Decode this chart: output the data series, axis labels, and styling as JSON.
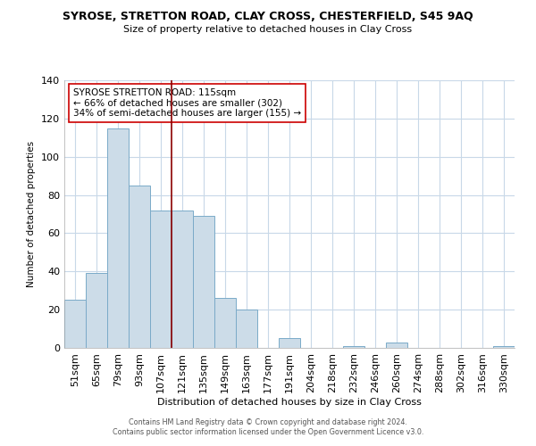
{
  "title": "SYROSE, STRETTON ROAD, CLAY CROSS, CHESTERFIELD, S45 9AQ",
  "subtitle": "Size of property relative to detached houses in Clay Cross",
  "xlabel": "Distribution of detached houses by size in Clay Cross",
  "ylabel": "Number of detached properties",
  "bar_labels": [
    "51sqm",
    "65sqm",
    "79sqm",
    "93sqm",
    "107sqm",
    "121sqm",
    "135sqm",
    "149sqm",
    "163sqm",
    "177sqm",
    "191sqm",
    "204sqm",
    "218sqm",
    "232sqm",
    "246sqm",
    "260sqm",
    "274sqm",
    "288sqm",
    "302sqm",
    "316sqm",
    "330sqm"
  ],
  "bar_values": [
    25,
    39,
    115,
    85,
    72,
    72,
    69,
    26,
    20,
    0,
    5,
    0,
    0,
    1,
    0,
    3,
    0,
    0,
    0,
    0,
    1
  ],
  "bar_color": "#ccdce8",
  "bar_edgecolor": "#7aaac8",
  "vline_x": 4.5,
  "vline_color": "#8b0000",
  "ylim": [
    0,
    140
  ],
  "annotation_text": "SYROSE STRETTON ROAD: 115sqm\n← 66% of detached houses are smaller (302)\n34% of semi-detached houses are larger (155) →",
  "annotation_box_edgecolor": "#cc0000",
  "annotation_box_facecolor": "#ffffff",
  "footer1": "Contains HM Land Registry data © Crown copyright and database right 2024.",
  "footer2": "Contains public sector information licensed under the Open Government Licence v3.0.",
  "background_color": "#ffffff",
  "grid_color": "#c8d8e8"
}
